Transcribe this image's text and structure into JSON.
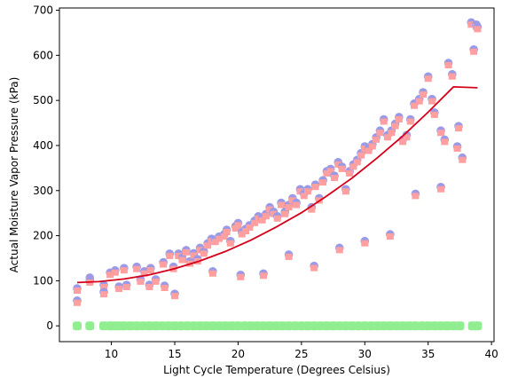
{
  "chart_data": {
    "type": "scatter",
    "xlabel": "Light Cycle Temperature (Degrees Celsius)",
    "ylabel": "Actual Moisture Vapor Pressure (kPa)",
    "xlim": [
      5.9,
      40.2
    ],
    "ylim": [
      -35,
      705
    ],
    "x_ticks": [
      10,
      15,
      20,
      25,
      30,
      35,
      40
    ],
    "y_ticks": [
      0,
      100,
      200,
      300,
      400,
      500,
      600,
      700
    ],
    "grid": false,
    "colors": {
      "circle": "#9b9ae6",
      "square": "#ff9f9f",
      "baseline": "#90ee90",
      "fit": "#d7001a"
    },
    "series": [
      {
        "marker": "circle+square",
        "x": [
          7.3,
          7.3,
          8.3,
          8.3,
          9.4,
          9.4,
          9.9,
          10.3,
          10.6,
          11.0,
          11.2,
          12.0,
          12.3,
          12.6,
          13.0,
          13.1,
          13.5,
          14.1,
          14.2,
          14.6,
          14.9,
          15.3,
          15.6,
          15.9,
          16.2,
          16.5,
          16.8,
          17.0,
          17.3,
          17.6,
          17.9,
          18.2,
          18.5,
          18.9,
          19.1,
          19.4,
          19.8,
          20.0,
          20.3,
          20.6,
          20.9,
          21.3,
          21.6,
          21.9,
          22.2,
          22.5,
          22.8,
          23.1,
          23.4,
          23.7,
          24.0,
          24.3,
          24.6,
          24.9,
          25.2,
          25.5,
          25.8,
          26.1,
          26.4,
          26.7,
          27.0,
          27.3,
          27.6,
          27.9,
          28.2,
          28.5,
          28.8,
          29.1,
          29.4,
          29.7,
          30.0,
          30.3,
          30.6,
          30.9,
          31.2,
          31.5,
          31.8,
          32.1,
          32.4,
          32.7,
          33.0,
          33.3,
          33.6,
          33.9,
          34.3,
          34.6,
          35.0,
          35.3,
          35.5,
          36.0,
          36.3,
          36.6,
          36.9,
          37.4,
          37.7,
          38.4,
          38.6,
          38.8,
          38.9,
          15.0,
          18.0,
          20.2,
          22.0,
          24.0,
          26.0,
          28.0,
          30.0,
          32.0,
          34.0,
          36.0,
          37.3
        ],
        "y": [
          80,
          53,
          104,
          98,
          88,
          72,
          115,
          120,
          84,
          125,
          88,
          128,
          100,
          118,
          88,
          125,
          100,
          138,
          86,
          157,
          128,
          157,
          148,
          165,
          140,
          158,
          145,
          170,
          162,
          180,
          190,
          188,
          195,
          200,
          210,
          185,
          218,
          225,
          205,
          212,
          220,
          230,
          240,
          236,
          245,
          260,
          250,
          240,
          270,
          250,
          265,
          280,
          270,
          300,
          290,
          300,
          260,
          310,
          280,
          320,
          340,
          345,
          330,
          360,
          350,
          300,
          340,
          355,
          365,
          380,
          395,
          390,
          400,
          415,
          430,
          455,
          420,
          430,
          445,
          460,
          410,
          420,
          455,
          490,
          500,
          515,
          550,
          500,
          470,
          430,
          410,
          580,
          555,
          440,
          370,
          670,
          610,
          665,
          660,
          68,
          118,
          110,
          113,
          155,
          130,
          170,
          185,
          200,
          290,
          305,
          395
        ]
      },
      {
        "marker": "baseline",
        "x": [
          7.3,
          8.3,
          9.4,
          9.9,
          10.3,
          10.6,
          11.0,
          11.5,
          12.0,
          12.5,
          13.0,
          13.5,
          14.0,
          14.5,
          15.0,
          15.5,
          16.0,
          16.5,
          17.0,
          17.5,
          18.0,
          18.5,
          19.0,
          19.5,
          20.0,
          20.5,
          21.0,
          21.5,
          22.0,
          22.5,
          23.0,
          23.5,
          24.0,
          24.5,
          25.0,
          25.5,
          26.0,
          26.5,
          27.0,
          27.5,
          28.0,
          28.5,
          29.0,
          29.5,
          30.0,
          30.5,
          31.0,
          31.5,
          32.0,
          32.5,
          33.0,
          33.5,
          34.0,
          34.5,
          35.0,
          35.5,
          36.0,
          36.5,
          37.0,
          37.5,
          38.5,
          38.9
        ],
        "y": [
          0,
          0,
          0,
          0,
          0,
          0,
          0,
          0,
          0,
          0,
          0,
          0,
          0,
          0,
          0,
          0,
          0,
          0,
          0,
          0,
          0,
          0,
          0,
          0,
          0,
          0,
          0,
          0,
          0,
          0,
          0,
          0,
          0,
          0,
          0,
          0,
          0,
          0,
          0,
          0,
          0,
          0,
          0,
          0,
          0,
          0,
          0,
          0,
          0,
          0,
          0,
          0,
          0,
          0,
          0,
          0,
          0,
          0,
          0,
          0,
          0,
          0
        ]
      },
      {
        "marker": "line",
        "x": [
          7.3,
          9.0,
          11.0,
          13.0,
          15.0,
          17.0,
          19.0,
          21.0,
          23.0,
          25.0,
          27.0,
          29.0,
          31.0,
          33.0,
          35.0,
          37.0,
          38.9
        ],
        "y": [
          96,
          98,
          104,
          113,
          127,
          144,
          165,
          190,
          219,
          251,
          288,
          328,
          373,
          421,
          474,
          530,
          528
        ]
      }
    ]
  }
}
